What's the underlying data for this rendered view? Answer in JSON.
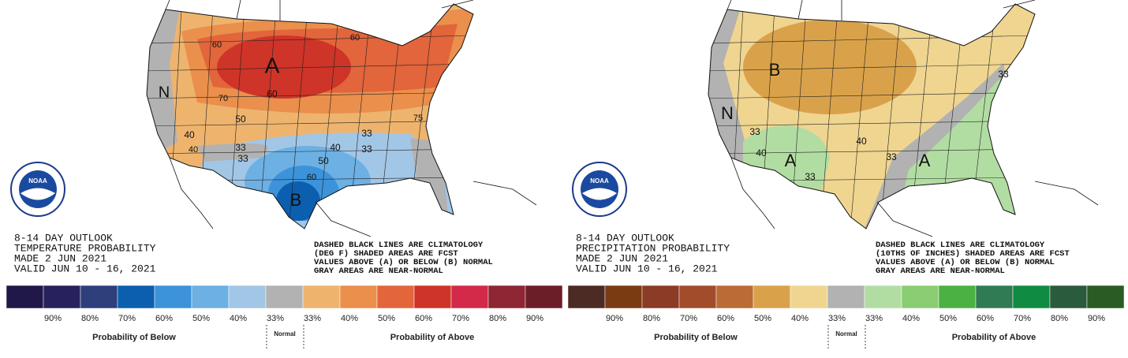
{
  "panels": [
    {
      "kind": "temperature",
      "title_lines": [
        "8-14 DAY OUTLOOK",
        "TEMPERATURE PROBABILITY",
        "MADE  2 JUN 2021",
        "VALID  JUN 10 - 16, 2021"
      ],
      "notes": [
        "DASHED BLACK LINES ARE CLIMATOLOGY",
        "(DEG F) SHADED AREAS ARE FCST",
        "VALUES ABOVE (A) OR BELOW (B) NORMAL",
        "GRAY AREAS ARE NEAR-NORMAL"
      ],
      "logo": "NOAA",
      "map_labels": [
        "A",
        "B",
        "N",
        "60",
        "70",
        "60",
        "50",
        "33",
        "40",
        "33",
        "33",
        "40",
        "50",
        "60",
        "40",
        "33",
        "75",
        "60"
      ],
      "legend": {
        "colors": [
          "#1f1848",
          "#27225e",
          "#2e3f7c",
          "#0c5fae",
          "#3c93da",
          "#6cb0e4",
          "#a2c6e6",
          "#b2b2b2",
          "#eeb46e",
          "#ea8f4c",
          "#e2653b",
          "#cf3428",
          "#d22a48",
          "#8e2634",
          "#6c1e28"
        ],
        "labels": [
          "90%",
          "80%",
          "70%",
          "60%",
          "50%",
          "40%",
          "33%",
          "33%",
          "40%",
          "50%",
          "60%",
          "70%",
          "80%",
          "90%"
        ],
        "below": "Probability of Below",
        "normal": "Normal",
        "above": "Probability of Above"
      }
    },
    {
      "kind": "precipitation",
      "title_lines": [
        "8-14 DAY OUTLOOK",
        "PRECIPITATION PROBABILITY",
        "MADE  2 JUN 2021",
        "VALID  JUN 10 - 16, 2021"
      ],
      "notes": [
        "DASHED BLACK LINES ARE CLIMATOLOGY",
        "(10THS OF INCHES) SHADED AREAS ARE FCST",
        "VALUES ABOVE (A) OR BELOW (B) NORMAL",
        "GRAY AREAS ARE NEAR-NORMAL"
      ],
      "logo": "NOAA",
      "map_labels": [
        "B",
        "N",
        "A",
        "A",
        "33",
        "40",
        "33",
        "33",
        "40",
        "33"
      ],
      "legend": {
        "colors": [
          "#4c2b24",
          "#7b3b12",
          "#8c3b26",
          "#a24c2c",
          "#ba6c34",
          "#d9a24a",
          "#efd590",
          "#b2b2b2",
          "#b2dda2",
          "#8acd72",
          "#4ab142",
          "#307b54",
          "#108c42",
          "#2a5b3c",
          "#2b5b24"
        ],
        "labels": [
          "90%",
          "80%",
          "70%",
          "60%",
          "50%",
          "40%",
          "33%",
          "33%",
          "40%",
          "50%",
          "60%",
          "70%",
          "80%",
          "90%"
        ],
        "below": "Probability of Below",
        "normal": "Normal",
        "above": "Probability of Above"
      }
    }
  ]
}
